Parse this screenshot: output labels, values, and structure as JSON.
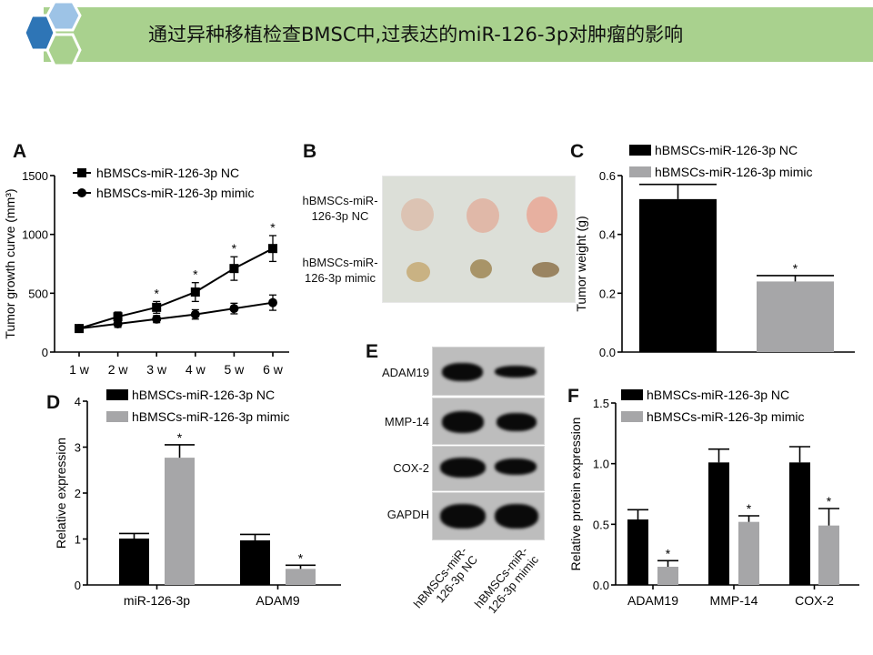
{
  "header": {
    "title": "通过异种移植检查BMSC中,过表达的miR-126-3p对肿瘤的影响",
    "banner_color": "#a9d18e",
    "hex_colors": [
      "#2e75b6",
      "#9dc3e6",
      "#a9d18e"
    ]
  },
  "panels": {
    "A": "A",
    "B": "B",
    "C": "C",
    "D": "D",
    "E": "E",
    "F": "F"
  },
  "legend": {
    "nc": "hBMSCs-miR-126-3p NC",
    "mimic": "hBMSCs-miR-126-3p mimic"
  },
  "photo": {
    "row_labels": [
      "hBMSCs-miR-\n126-3p NC",
      "hBMSCs-miR-\n126-3p mimic"
    ]
  },
  "blot": {
    "rows": [
      "ADAM19",
      "MMP-14",
      "COX-2",
      "GAPDH"
    ],
    "lanes": [
      "hBMSCs-miR-\n126-3p NC",
      "hBMSCs-miR-\n126-3p mimic"
    ]
  },
  "chart_data": [
    {
      "id": "A",
      "type": "line",
      "ylabel": "Tumor growth curve (mm³)",
      "categories": [
        "1 w",
        "2 w",
        "3 w",
        "4 w",
        "5 w",
        "6 w"
      ],
      "ylim": [
        0,
        1500
      ],
      "yticks": [
        0,
        500,
        1000,
        1500
      ],
      "series": [
        {
          "name": "hBMSCs-miR-126-3p NC",
          "marker": "square",
          "values": [
            200,
            300,
            380,
            510,
            710,
            880
          ],
          "errors": [
            20,
            40,
            50,
            80,
            100,
            110
          ]
        },
        {
          "name": "hBMSCs-miR-126-3p mimic",
          "marker": "circle",
          "values": [
            200,
            240,
            280,
            320,
            370,
            420
          ],
          "errors": [
            20,
            30,
            30,
            40,
            45,
            65
          ]
        }
      ],
      "significance": [
        "",
        "",
        "*",
        "*",
        "*",
        "*"
      ],
      "legend": "top-left"
    },
    {
      "id": "C",
      "type": "bar",
      "ylabel": "Tumor weight (g)",
      "categories": [
        ""
      ],
      "ylim": [
        0,
        0.6
      ],
      "yticks": [
        "0.0",
        "0.2",
        "0.4",
        "0.6"
      ],
      "series": [
        {
          "name": "hBMSCs-miR-126-3p NC",
          "color": "#000000",
          "values": [
            0.52
          ],
          "errors": [
            0.05
          ],
          "sig": [
            ""
          ]
        },
        {
          "name": "hBMSCs-miR-126-3p mimic",
          "color": "#a6a6a8",
          "values": [
            0.24
          ],
          "errors": [
            0.02
          ],
          "sig": [
            "*"
          ]
        }
      ],
      "legend": "top"
    },
    {
      "id": "D",
      "type": "bar",
      "ylabel": "Relative expression",
      "categories": [
        "miR-126-3p",
        "ADAM9"
      ],
      "ylim": [
        0,
        4
      ],
      "yticks": [
        "0",
        "1",
        "2",
        "3",
        "4"
      ],
      "series": [
        {
          "name": "hBMSCs-miR-126-3p NC",
          "color": "#000000",
          "values": [
            1.01,
            0.97
          ],
          "errors": [
            0.11,
            0.13
          ],
          "sig": [
            "",
            ""
          ]
        },
        {
          "name": "hBMSCs-miR-126-3p mimic",
          "color": "#a6a6a8",
          "values": [
            2.77,
            0.35
          ],
          "errors": [
            0.28,
            0.08
          ],
          "sig": [
            "*",
            "*"
          ]
        }
      ],
      "legend": "top-left"
    },
    {
      "id": "F",
      "type": "bar",
      "ylabel": "Relative protein expression",
      "categories": [
        "ADAM19",
        "MMP-14",
        "COX-2"
      ],
      "ylim": [
        0,
        1.5
      ],
      "yticks": [
        "0.0",
        "0.5",
        "1.0",
        "1.5"
      ],
      "series": [
        {
          "name": "hBMSCs-miR-126-3p NC",
          "color": "#000000",
          "values": [
            0.54,
            1.01,
            1.01
          ],
          "errors": [
            0.08,
            0.11,
            0.13
          ],
          "sig": [
            "",
            "",
            ""
          ]
        },
        {
          "name": "hBMSCs-miR-126-3p mimic",
          "color": "#a6a6a8",
          "values": [
            0.15,
            0.52,
            0.49
          ],
          "errors": [
            0.05,
            0.05,
            0.14
          ],
          "sig": [
            "*",
            "*",
            "*"
          ]
        }
      ],
      "legend": "top-left"
    }
  ]
}
